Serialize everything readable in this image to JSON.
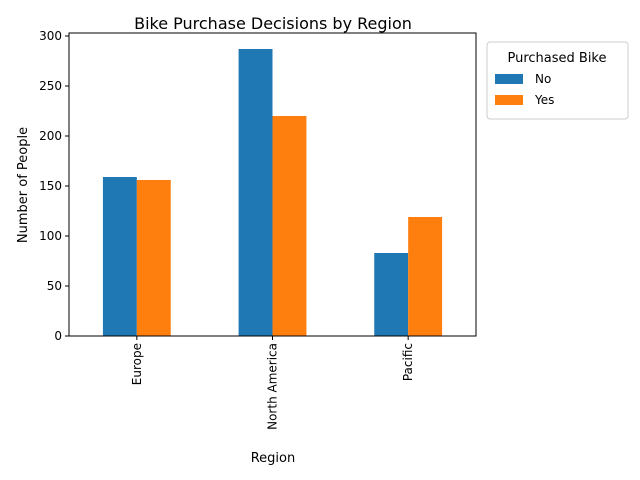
{
  "chart_data": {
    "type": "bar",
    "title": "Bike Purchase Decisions by Region",
    "xlabel": "Region",
    "ylabel": "Number of People",
    "categories": [
      "Europe",
      "North America",
      "Pacific"
    ],
    "series": [
      {
        "name": "No",
        "values": [
          159,
          287,
          83
        ],
        "color": "#1f77b4"
      },
      {
        "name": "Yes",
        "values": [
          156,
          220,
          119
        ],
        "color": "#ff7f0e"
      }
    ],
    "ylim": [
      0,
      303
    ],
    "yticks": [
      0,
      50,
      100,
      150,
      200,
      250,
      300
    ],
    "legend": {
      "title": "Purchased Bike",
      "position": "outside-right"
    },
    "grid": false
  }
}
